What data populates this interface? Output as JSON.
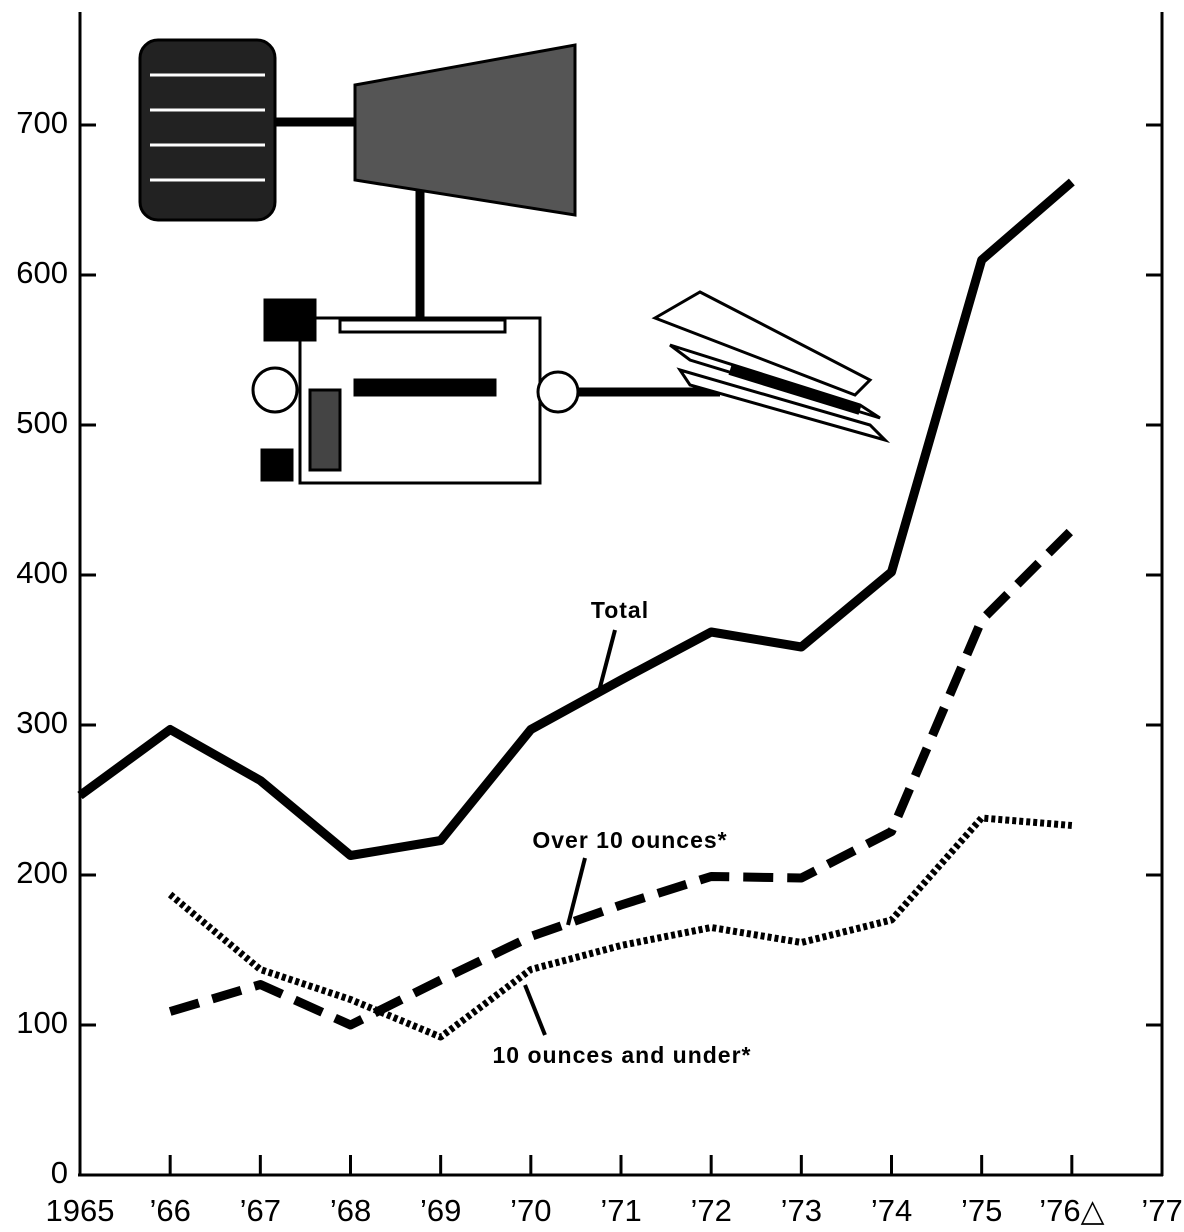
{
  "chart_data": {
    "type": "line",
    "x": [
      1965,
      1966,
      1967,
      1968,
      1969,
      1970,
      1971,
      1972,
      1973,
      1974,
      1975,
      1976
    ],
    "series": [
      {
        "name": "Total",
        "color": "#000000",
        "dash": "solid",
        "values": [
          253,
          297,
          263,
          213,
          223,
          297,
          330,
          362,
          352,
          402,
          610,
          662
        ]
      },
      {
        "name": "Over 10 ounces*",
        "color": "#000000",
        "dash": "dashed",
        "values": [
          null,
          109,
          127,
          100,
          130,
          159,
          180,
          199,
          198,
          229,
          370,
          430
        ]
      },
      {
        "name": "10 ounces and under*",
        "color": "#000000",
        "dash": "dotted",
        "values": [
          null,
          187,
          137,
          117,
          92,
          137,
          153,
          165,
          155,
          170,
          238,
          233
        ]
      }
    ],
    "xlim": [
      1965,
      1977
    ],
    "xticks": [
      {
        "value": 1965,
        "label": "1965"
      },
      {
        "value": 1966,
        "label": "’66"
      },
      {
        "value": 1967,
        "label": "’67"
      },
      {
        "value": 1968,
        "label": "’68"
      },
      {
        "value": 1969,
        "label": "’69"
      },
      {
        "value": 1970,
        "label": "’70"
      },
      {
        "value": 1971,
        "label": "’71"
      },
      {
        "value": 1972,
        "label": "’72"
      },
      {
        "value": 1973,
        "label": "’73"
      },
      {
        "value": 1974,
        "label": "’74"
      },
      {
        "value": 1975,
        "label": "’75"
      },
      {
        "value": 1976,
        "label": "’76△"
      },
      {
        "value": 1977,
        "label": "’77"
      }
    ],
    "ylim": [
      0,
      775
    ],
    "yticks": [
      0,
      100,
      200,
      300,
      400,
      500,
      600,
      700
    ],
    "grid": false
  }
}
